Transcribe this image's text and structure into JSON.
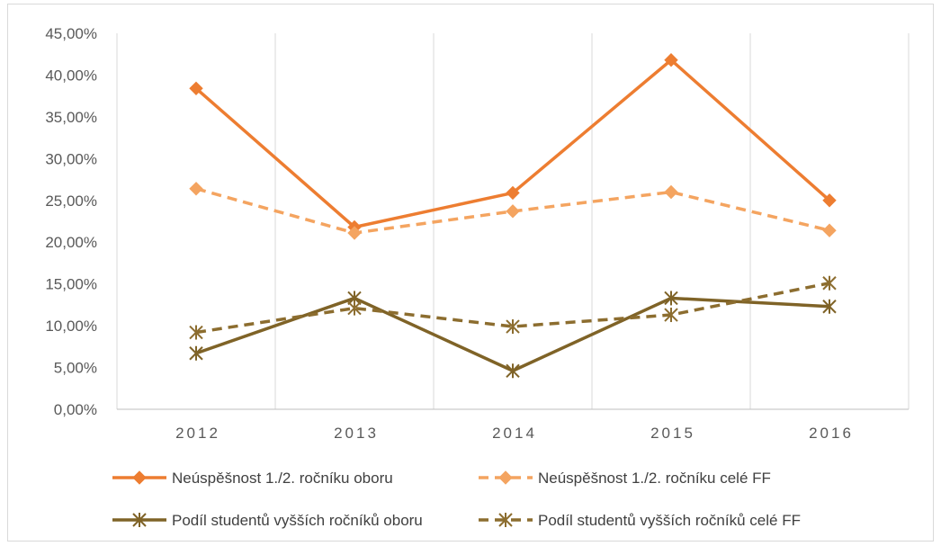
{
  "chart_data": {
    "type": "line",
    "title": "",
    "xlabel": "",
    "ylabel": "",
    "categories": [
      "2012",
      "2013",
      "2014",
      "2015",
      "2016"
    ],
    "ylim": [
      0,
      45
    ],
    "yticks": [
      "0,00%",
      "5,00%",
      "10,00%",
      "15,00%",
      "20,00%",
      "25,00%",
      "30,00%",
      "35,00%",
      "40,00%",
      "45,00%"
    ],
    "grid": "vertical",
    "legend_position": "bottom",
    "series": [
      {
        "name": "Neúspěšnost 1./2. ročníku oboru",
        "values": [
          38.4,
          21.8,
          25.9,
          41.8,
          25.0
        ],
        "color": "#ed7d31",
        "dash": "solid",
        "marker": "diamond"
      },
      {
        "name": "Neúspěšnost 1./2. ročníku celé FF",
        "values": [
          26.4,
          21.1,
          23.7,
          26.0,
          21.4
        ],
        "color": "#f4a460",
        "dash": "dashed",
        "marker": "diamond"
      },
      {
        "name": "Podíl studentů vyšších ročníků oboru",
        "values": [
          6.7,
          13.3,
          4.6,
          13.3,
          12.3
        ],
        "color": "#7f6327",
        "dash": "solid",
        "marker": "asterisk"
      },
      {
        "name": "Podíl studentů vyšších ročníků celé FF",
        "values": [
          9.2,
          12.1,
          9.9,
          11.3,
          15.1
        ],
        "color": "#8c6d2f",
        "dash": "dashed",
        "marker": "asterisk"
      }
    ]
  }
}
